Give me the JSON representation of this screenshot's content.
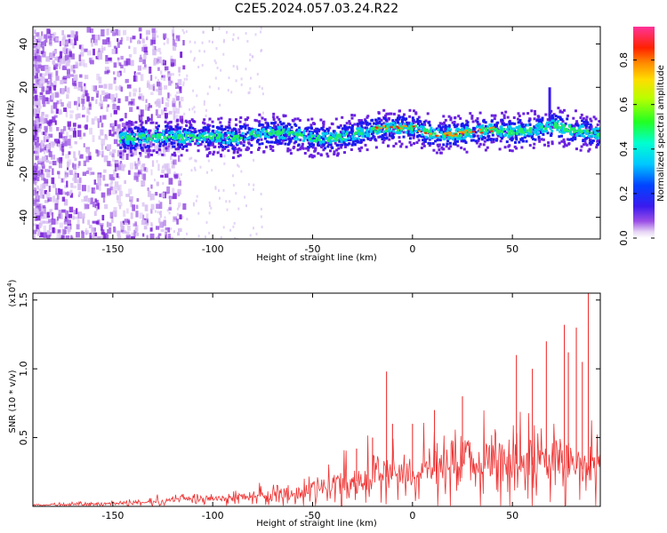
{
  "title": "C2E5.2024.057.03.24.R22",
  "colors": {
    "spectrum_low": "#e8d6f8",
    "spectrum_mid": "#7a2bd8",
    "spectrum_core": "#1a1aee",
    "ridge_peak": "#ff0000",
    "snr_line": "#ee3333"
  },
  "chart_data": [
    {
      "type": "heatmap",
      "title": "",
      "xlabel": "Height of straight line (km)",
      "ylabel": "Frequency (Hz)",
      "xlim": [
        -190,
        94
      ],
      "ylim": [
        -50,
        48
      ],
      "xticks": [
        -150,
        -100,
        -50,
        0,
        50
      ],
      "yticks": [
        -40,
        -20,
        0,
        20,
        40
      ],
      "ridge": {
        "x": [
          -147,
          -140,
          -130,
          -120,
          -110,
          -100,
          -90,
          -80,
          -70,
          -60,
          -50,
          -40,
          -30,
          -20,
          -10,
          0,
          10,
          20,
          30,
          40,
          50,
          60,
          70,
          80,
          94
        ],
        "y": [
          -3,
          -3,
          -2,
          -2,
          -3,
          -2,
          -3,
          -1,
          0,
          -1,
          -3,
          -3,
          -1,
          1,
          2,
          2,
          -1,
          -1,
          0,
          1,
          0,
          1,
          3,
          1,
          -1
        ]
      },
      "colorbar": {
        "label": "Normalized spectral amplitude",
        "range": [
          0,
          0.95
        ],
        "ticks": [
          "0.0",
          "0.2",
          "0.4",
          "0.6",
          "0.8"
        ],
        "tick_values": [
          0.0,
          0.2,
          0.4,
          0.6,
          0.8
        ]
      }
    },
    {
      "type": "line",
      "title": "",
      "xlabel": "Height of straight line (km)",
      "ylabel": "SNR (10 * v/v)",
      "yscale_note": "(x10",
      "yscale_exp": "4",
      "yscale_close": ")",
      "xlim": [
        -190,
        94
      ],
      "ylim": [
        0,
        1.55
      ],
      "xticks": [
        -150,
        -100,
        -50,
        0,
        50
      ],
      "yticks": [
        "0.5",
        "1.0",
        "1.5"
      ],
      "ytick_values": [
        0.5,
        1.0,
        1.5
      ],
      "series": [
        {
          "name": "SNR",
          "envelope_x": [
            -190,
            -160,
            -140,
            -120,
            -100,
            -80,
            -60,
            -45,
            -35,
            -25,
            -15,
            -8,
            0,
            10,
            20,
            30,
            40,
            50,
            60,
            70,
            80,
            94
          ],
          "envelope_y": [
            0.02,
            0.03,
            0.05,
            0.08,
            0.1,
            0.13,
            0.18,
            0.25,
            0.32,
            0.38,
            0.42,
            0.45,
            0.43,
            0.5,
            0.56,
            0.6,
            0.62,
            0.62,
            0.6,
            0.58,
            0.55,
            0.52
          ],
          "spikes_x": [
            -28,
            -20,
            -13,
            -10,
            0,
            11,
            25,
            52,
            60,
            67,
            76,
            78,
            82,
            85,
            88
          ],
          "spikes_y": [
            0.42,
            0.5,
            0.98,
            0.6,
            0.6,
            0.7,
            0.8,
            1.1,
            1.0,
            1.2,
            1.32,
            1.12,
            1.3,
            1.05,
            1.55
          ]
        }
      ]
    }
  ]
}
